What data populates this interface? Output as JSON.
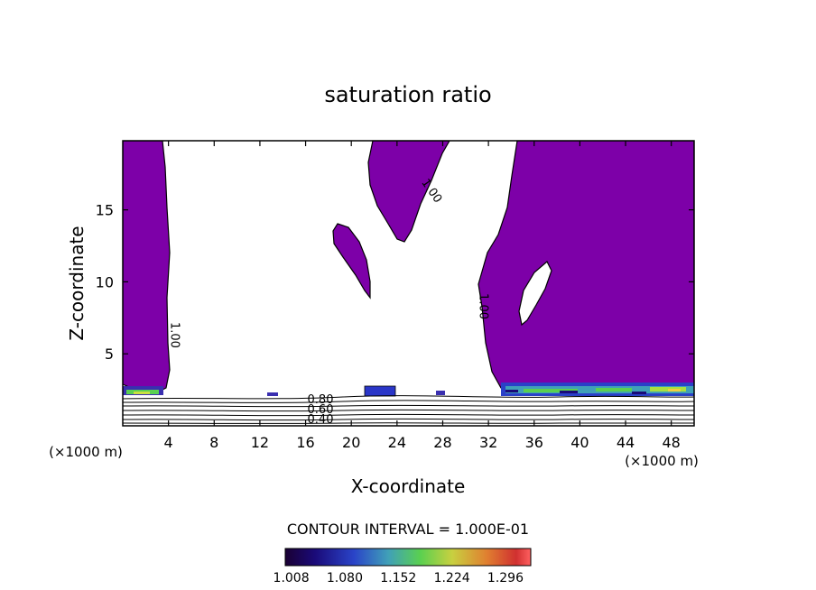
{
  "chart_data": {
    "type": "heatmap",
    "title": "saturation ratio",
    "xlabel": "X-coordinate",
    "ylabel": "Z-coordinate",
    "x_unit": "(×1000 m)",
    "z_unit": "(×1000 m)",
    "xlim": [
      0,
      50
    ],
    "ylim": [
      0,
      19.8
    ],
    "x_ticks": [
      4,
      8,
      12,
      16,
      20,
      24,
      28,
      32,
      36,
      40,
      44,
      48
    ],
    "y_ticks": [
      5,
      10,
      15
    ],
    "contour_interval_label": "CONTOUR INTERVAL = 1.000E-01",
    "contour_labels": [
      {
        "text": "1.00",
        "x": 4.5,
        "z": 6.3,
        "angle": 90
      },
      {
        "text": "1.00",
        "x": 31.5,
        "z": 8.3,
        "angle": 90
      },
      {
        "text": "1.00",
        "x": 27.0,
        "z": 16.3,
        "angle": 55
      },
      {
        "text": "0.80",
        "x": 17.3,
        "z": 1.8,
        "angle": 0
      },
      {
        "text": "0.60",
        "x": 17.3,
        "z": 1.1,
        "angle": 0
      },
      {
        "text": "0.40",
        "x": 17.3,
        "z": 0.4,
        "angle": 0
      }
    ],
    "colorbar": {
      "min": 1.0,
      "max": 1.33,
      "tick_labels": [
        "1.008",
        "1.080",
        "1.152",
        "1.224",
        "1.296"
      ]
    },
    "supersaturated_fill_color": "#7d00a8"
  }
}
